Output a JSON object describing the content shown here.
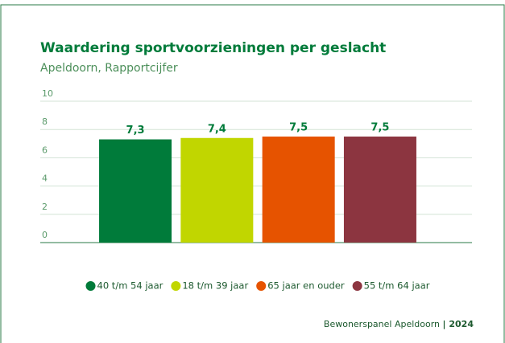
{
  "chart_data": {
    "type": "bar",
    "title": "Waardering sportvoorzieningen per geslacht",
    "subtitle": "Apeldoorn, Rapportcijfer",
    "categories": [
      null
    ],
    "series": [
      {
        "name": "40 t/m 54 jaar",
        "color": "#007b3a",
        "values": [
          7.3
        ],
        "value_labels": [
          "7,3"
        ]
      },
      {
        "name": "18 t/m 39 jaar",
        "color": "#c1d600",
        "values": [
          7.4
        ],
        "value_labels": [
          "7,4"
        ]
      },
      {
        "name": "65 jaar en ouder",
        "color": "#e65300",
        "values": [
          7.5
        ],
        "value_labels": [
          "7,5"
        ]
      },
      {
        "name": "55 t/m 64 jaar",
        "color": "#8c3540",
        "values": [
          7.5
        ],
        "value_labels": [
          "7,5"
        ]
      }
    ],
    "ylim": [
      0,
      10
    ],
    "yticks": [
      0,
      2,
      4,
      6,
      8,
      10
    ],
    "grid": true,
    "legend": "bottom",
    "source": "Bewonerspanel Apeldoorn",
    "year_label": "| 2024"
  }
}
